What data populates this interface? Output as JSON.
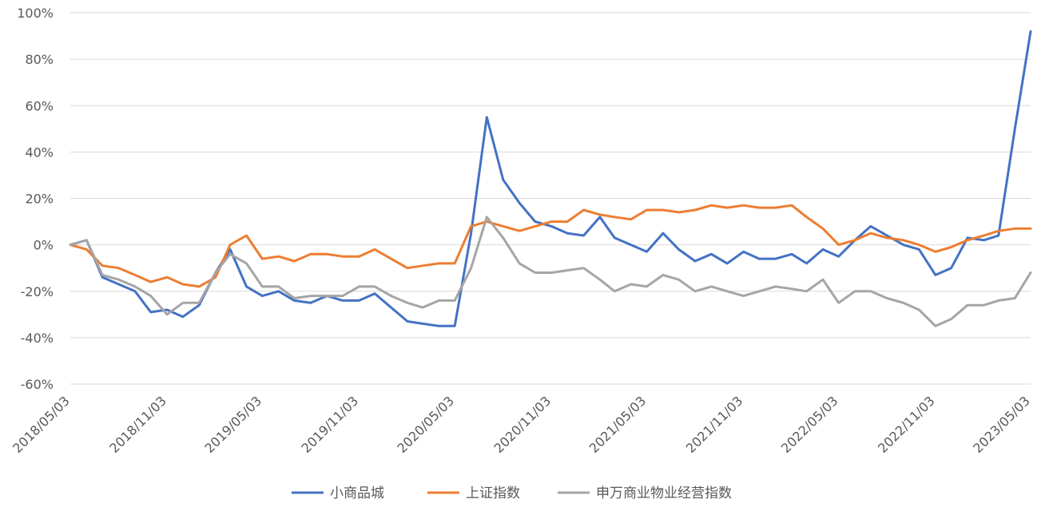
{
  "chart_data": {
    "type": "line",
    "title": "",
    "xlabel": "",
    "ylabel": "",
    "ylim": [
      -60,
      100
    ],
    "yticks": [
      100,
      80,
      60,
      40,
      20,
      0,
      -20,
      -40,
      -60
    ],
    "ytick_labels": [
      "100%",
      "80%",
      "60%",
      "40%",
      "20%",
      "0%",
      "-20%",
      "-40%",
      "-60%"
    ],
    "xticks": [
      "2018/05/03",
      "2018/11/03",
      "2019/05/03",
      "2019/11/03",
      "2020/05/03",
      "2020/11/03",
      "2021/05/03",
      "2021/11/03",
      "2022/05/03",
      "2022/11/03",
      "2023/05/03"
    ],
    "grid": true,
    "legend_position": "bottom",
    "x": [
      "2018/05/03",
      "2018/06/03",
      "2018/07/03",
      "2018/08/03",
      "2018/09/03",
      "2018/10/03",
      "2018/11/03",
      "2018/12/03",
      "2019/01/03",
      "2019/02/03",
      "2019/03/03",
      "2019/04/03",
      "2019/05/03",
      "2019/06/03",
      "2019/07/03",
      "2019/08/03",
      "2019/09/03",
      "2019/10/03",
      "2019/11/03",
      "2019/12/03",
      "2020/01/03",
      "2020/02/03",
      "2020/03/03",
      "2020/04/03",
      "2020/05/03",
      "2020/06/03",
      "2020/07/03",
      "2020/08/03",
      "2020/09/03",
      "2020/10/03",
      "2020/11/03",
      "2020/12/03",
      "2021/01/03",
      "2021/02/03",
      "2021/03/03",
      "2021/04/03",
      "2021/05/03",
      "2021/06/03",
      "2021/07/03",
      "2021/08/03",
      "2021/09/03",
      "2021/10/03",
      "2021/11/03",
      "2021/12/03",
      "2022/01/03",
      "2022/02/03",
      "2022/03/03",
      "2022/04/03",
      "2022/05/03",
      "2022/06/03",
      "2022/07/03",
      "2022/08/03",
      "2022/09/03",
      "2022/10/03",
      "2022/11/03",
      "2022/12/03",
      "2023/01/03",
      "2023/02/03",
      "2023/03/03",
      "2023/04/03",
      "2023/05/03"
    ],
    "series": [
      {
        "name": "小商品城",
        "color": "#4472c4",
        "values": [
          0,
          2,
          -14,
          -17,
          -20,
          -29,
          -28,
          -31,
          -26,
          -12,
          -2,
          -18,
          -22,
          -20,
          -24,
          -25,
          -22,
          -24,
          -24,
          -21,
          -27,
          -33,
          -34,
          -35,
          -35,
          5,
          55,
          28,
          18,
          10,
          8,
          5,
          4,
          12,
          3,
          0,
          -3,
          5,
          -2,
          -7,
          -4,
          -8,
          -3,
          -6,
          -6,
          -4,
          -8,
          -2,
          -5,
          2,
          8,
          4,
          0,
          -2,
          -13,
          -10,
          3,
          2,
          4,
          50,
          92
        ]
      },
      {
        "name": "上证指数",
        "color": "#ed7d31",
        "values": [
          0,
          -2,
          -9,
          -10,
          -13,
          -16,
          -14,
          -17,
          -18,
          -14,
          0,
          4,
          -6,
          -5,
          -7,
          -4,
          -4,
          -5,
          -5,
          -2,
          -6,
          -10,
          -9,
          -8,
          -8,
          8,
          10,
          8,
          6,
          8,
          10,
          10,
          15,
          13,
          12,
          11,
          15,
          15,
          14,
          15,
          17,
          16,
          17,
          16,
          16,
          17,
          12,
          7,
          0,
          2,
          5,
          3,
          2,
          0,
          -3,
          -1,
          2,
          4,
          6,
          7,
          7
        ]
      },
      {
        "name": "申万商业物业经营指数",
        "color": "#a5a5a5",
        "values": [
          0,
          2,
          -13,
          -15,
          -18,
          -22,
          -30,
          -25,
          -25,
          -12,
          -4,
          -8,
          -18,
          -18,
          -23,
          -22,
          -22,
          -22,
          -18,
          -18,
          -22,
          -25,
          -27,
          -24,
          -24,
          -10,
          12,
          3,
          -8,
          -12,
          -12,
          -11,
          -10,
          -15,
          -20,
          -17,
          -18,
          -13,
          -15,
          -20,
          -18,
          -20,
          -22,
          -20,
          -18,
          -19,
          -20,
          -15,
          -25,
          -20,
          -20,
          -23,
          -25,
          -28,
          -35,
          -32,
          -26,
          -26,
          -24,
          -23,
          -12
        ]
      }
    ]
  }
}
